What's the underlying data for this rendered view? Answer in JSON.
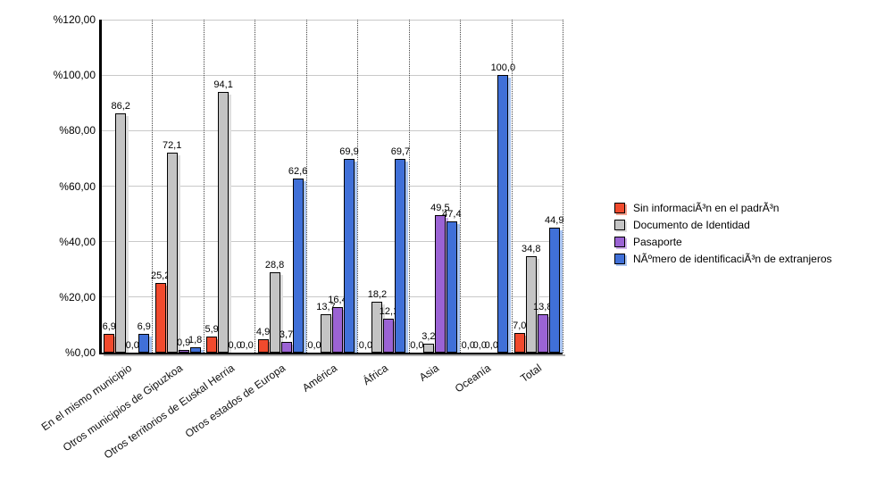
{
  "chart_data": {
    "type": "bar",
    "title": "",
    "xlabel": "",
    "ylabel": "",
    "ylim": [
      0,
      120
    ],
    "grid": true,
    "legend_position": "right",
    "decimal_separator": ",",
    "y_ticks": [
      "%0,00",
      "%20,00",
      "%40,00",
      "%60,00",
      "%80,00",
      "%100,00",
      "%120,00"
    ],
    "categories": [
      "En el mismo municipio",
      "Otros municipios de Gipuzkoa",
      "Otros territorios de Euskal Herria",
      "Otros estados de Europa",
      "América",
      "África",
      "Asia",
      "Oceanía",
      "Total"
    ],
    "series": [
      {
        "name": "Sin informaciÃ³n en el padrÃ³n",
        "color": "#f14a2d",
        "shadow_color": "#f7a violating",
        "values": [
          6.9,
          25.2,
          5.9,
          4.9,
          0.0,
          0.0,
          0.0,
          0.0,
          7.0
        ]
      },
      {
        "name": "Documento de Identidad",
        "color": "#c4c4c4",
        "shadow_color": "#dfdfdf",
        "values": [
          86.2,
          72.1,
          94.1,
          28.8,
          13.7,
          18.2,
          3.2,
          0.0,
          34.8
        ]
      },
      {
        "name": "Pasaporte",
        "color": "#9b63d4",
        "shadow_color": "#cfb0ec",
        "values": [
          0.0,
          0.9,
          0.0,
          3.7,
          16.4,
          12.1,
          49.5,
          0.0,
          13.8
        ]
      },
      {
        "name": "NÃºmero de identificaciÃ³n de extranjeros",
        "color": "#4070d8",
        "shadow_color": "#abc6f2",
        "values": [
          6.9,
          1.8,
          0.0,
          62.6,
          69.9,
          69.7,
          47.4,
          100.0,
          44.9
        ]
      }
    ]
  }
}
